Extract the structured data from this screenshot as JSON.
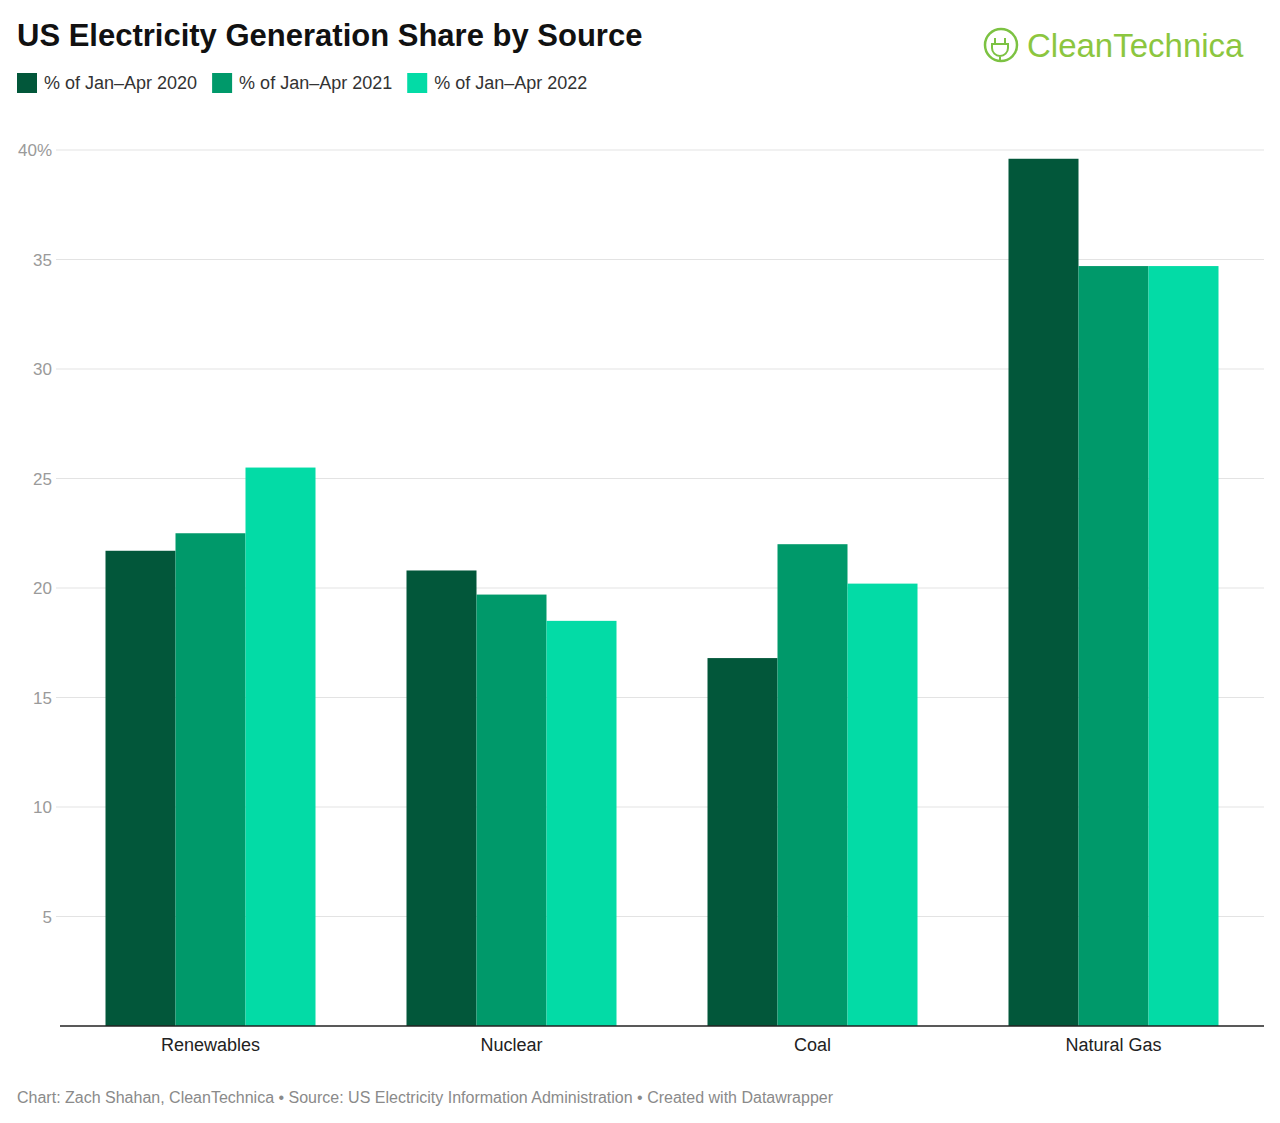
{
  "chart_data": {
    "type": "bar",
    "title": "US Electricity Generation Share by Source",
    "brand": "CleanTechnica",
    "source": "Chart: Zach Shahan, CleanTechnica • Source: US Electricity Information Administration • Created with Datawrapper",
    "categories": [
      "Renewables",
      "Nuclear",
      "Coal",
      "Natural Gas"
    ],
    "series": [
      {
        "name": "% of Jan–Apr 2020",
        "color": "#02573a",
        "values": [
          21.7,
          20.8,
          16.8,
          39.6
        ]
      },
      {
        "name": "% of Jan–Apr 2021",
        "color": "#00996a",
        "values": [
          22.5,
          19.7,
          22.0,
          34.7
        ]
      },
      {
        "name": "% of Jan–Apr 2022",
        "color": "#03dba6",
        "values": [
          25.5,
          18.5,
          20.2,
          34.7
        ]
      }
    ],
    "ylim": [
      0,
      40
    ],
    "yticks": [
      5,
      10,
      15,
      20,
      25,
      30,
      35,
      {
        "value": 40,
        "label": "40%"
      }
    ],
    "grid": true,
    "legend": "top"
  }
}
